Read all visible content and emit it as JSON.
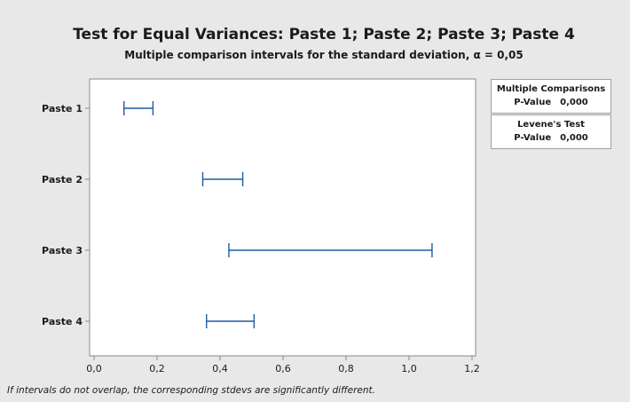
{
  "chart_data": {
    "type": "interval",
    "title": "Test for Equal Variances: Paste 1; Paste 2; Paste 3; Paste 4",
    "subtitle": "Multiple comparison intervals for the standard deviation, α = 0,05",
    "xlim": [
      0.0,
      1.2
    ],
    "x_ticks": [
      "0,0",
      "0,2",
      "0,4",
      "0,6",
      "0,8",
      "1,0",
      "1,2"
    ],
    "x_tick_values": [
      0.0,
      0.2,
      0.4,
      0.6,
      0.8,
      1.0,
      1.2
    ],
    "categories": [
      "Paste 1",
      "Paste 2",
      "Paste 3",
      "Paste 4"
    ],
    "intervals": [
      {
        "category": "Paste 1",
        "lower": 0.095,
        "upper": 0.187
      },
      {
        "category": "Paste 2",
        "lower": 0.345,
        "upper": 0.472
      },
      {
        "category": "Paste 3",
        "lower": 0.428,
        "upper": 1.073
      },
      {
        "category": "Paste 4",
        "lower": 0.357,
        "upper": 0.508
      }
    ],
    "interval_color": "#1f5aa6",
    "grid": false
  },
  "legend": {
    "multiple_comparisons": {
      "title": "Multiple Comparisons",
      "label": "P-Value",
      "value": "0,000"
    },
    "levene": {
      "title": "Levene's Test",
      "label": "P-Value",
      "value": "0,000"
    }
  },
  "footnote": "If intervals do not overlap, the corresponding stdevs are significantly different."
}
